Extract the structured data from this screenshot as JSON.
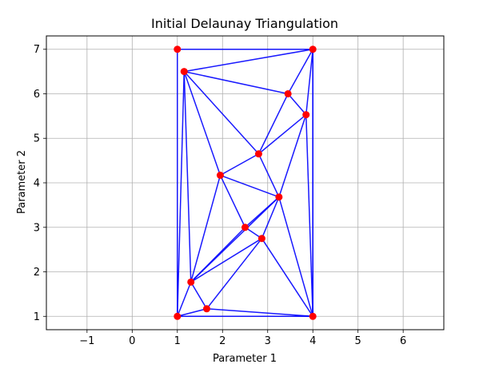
{
  "chart_data": {
    "type": "scatter",
    "title": "Initial Delaunay Triangulation",
    "xlabel": "Parameter 1",
    "ylabel": "Parameter 2",
    "xlim": [
      -1.9,
      6.9
    ],
    "ylim": [
      0.7,
      7.3
    ],
    "xticks": [
      -1,
      0,
      1,
      2,
      3,
      4,
      5,
      6
    ],
    "yticks": [
      1,
      2,
      3,
      4,
      5,
      6,
      7
    ],
    "grid": true,
    "point_color": "#ff0000",
    "edge_color": "#0000ff",
    "points": [
      {
        "x": 1.0,
        "y": 7.0
      },
      {
        "x": 4.0,
        "y": 7.0
      },
      {
        "x": 1.15,
        "y": 6.5
      },
      {
        "x": 3.45,
        "y": 6.0
      },
      {
        "x": 3.85,
        "y": 5.53
      },
      {
        "x": 2.8,
        "y": 4.65
      },
      {
        "x": 1.95,
        "y": 4.17
      },
      {
        "x": 3.25,
        "y": 3.68
      },
      {
        "x": 2.5,
        "y": 3.0
      },
      {
        "x": 2.87,
        "y": 2.75
      },
      {
        "x": 1.3,
        "y": 1.77
      },
      {
        "x": 1.65,
        "y": 1.17
      },
      {
        "x": 1.0,
        "y": 1.0
      },
      {
        "x": 4.0,
        "y": 1.0
      }
    ],
    "edges": [
      [
        0,
        1
      ],
      [
        0,
        12
      ],
      [
        1,
        13
      ],
      [
        12,
        13
      ],
      [
        1,
        2
      ],
      [
        1,
        3
      ],
      [
        1,
        4
      ],
      [
        1,
        13
      ],
      [
        2,
        3
      ],
      [
        2,
        5
      ],
      [
        2,
        6
      ],
      [
        2,
        10
      ],
      [
        2,
        12
      ],
      [
        3,
        4
      ],
      [
        3,
        5
      ],
      [
        4,
        5
      ],
      [
        4,
        7
      ],
      [
        4,
        13
      ],
      [
        5,
        6
      ],
      [
        5,
        7
      ],
      [
        6,
        7
      ],
      [
        6,
        8
      ],
      [
        6,
        10
      ],
      [
        7,
        8
      ],
      [
        7,
        9
      ],
      [
        7,
        10
      ],
      [
        7,
        13
      ],
      [
        8,
        9
      ],
      [
        8,
        10
      ],
      [
        9,
        10
      ],
      [
        9,
        11
      ],
      [
        9,
        13
      ],
      [
        10,
        11
      ],
      [
        10,
        12
      ],
      [
        11,
        12
      ],
      [
        11,
        13
      ]
    ]
  }
}
